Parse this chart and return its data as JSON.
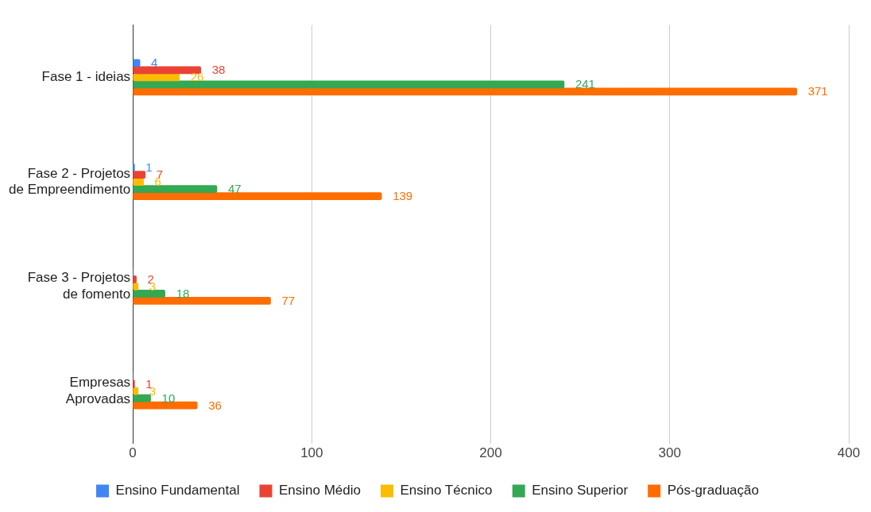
{
  "chart_data": {
    "type": "bar",
    "orientation": "horizontal",
    "categories": [
      "Fase 1 - ideias",
      "Fase 2 - Projetos de Empreendimento",
      "Fase 3 - Projetos de fomento",
      "Empresas Aprovadas"
    ],
    "series": [
      {
        "name": "Ensino Fundamental",
        "color": "#4285f4",
        "values": [
          4,
          1,
          0,
          0
        ],
        "value_labels": [
          "4",
          "1",
          null,
          null
        ]
      },
      {
        "name": "Ensino Médio",
        "color": "#ea4335",
        "values": [
          38,
          7,
          2,
          1
        ],
        "value_labels": [
          "38",
          "7",
          "2",
          "1"
        ]
      },
      {
        "name": "Ensino Técnico",
        "color": "#fbbc04",
        "values": [
          26,
          6,
          3,
          3
        ],
        "value_labels": [
          "26",
          "6",
          "3",
          "3"
        ]
      },
      {
        "name": "Ensino Superior",
        "color": "#34a853",
        "values": [
          241,
          47,
          18,
          10
        ],
        "value_labels": [
          "241",
          "47",
          "18",
          "10"
        ]
      },
      {
        "name": "Pós-graduação",
        "color": "#ff6d01",
        "values": [
          371,
          139,
          77,
          36
        ],
        "value_labels": [
          "371",
          "139",
          "77",
          "36"
        ]
      }
    ],
    "xlim": [
      0,
      400
    ],
    "xticks": [
      0,
      100,
      200,
      300,
      400
    ],
    "grid": "x",
    "legend": "bottom"
  }
}
